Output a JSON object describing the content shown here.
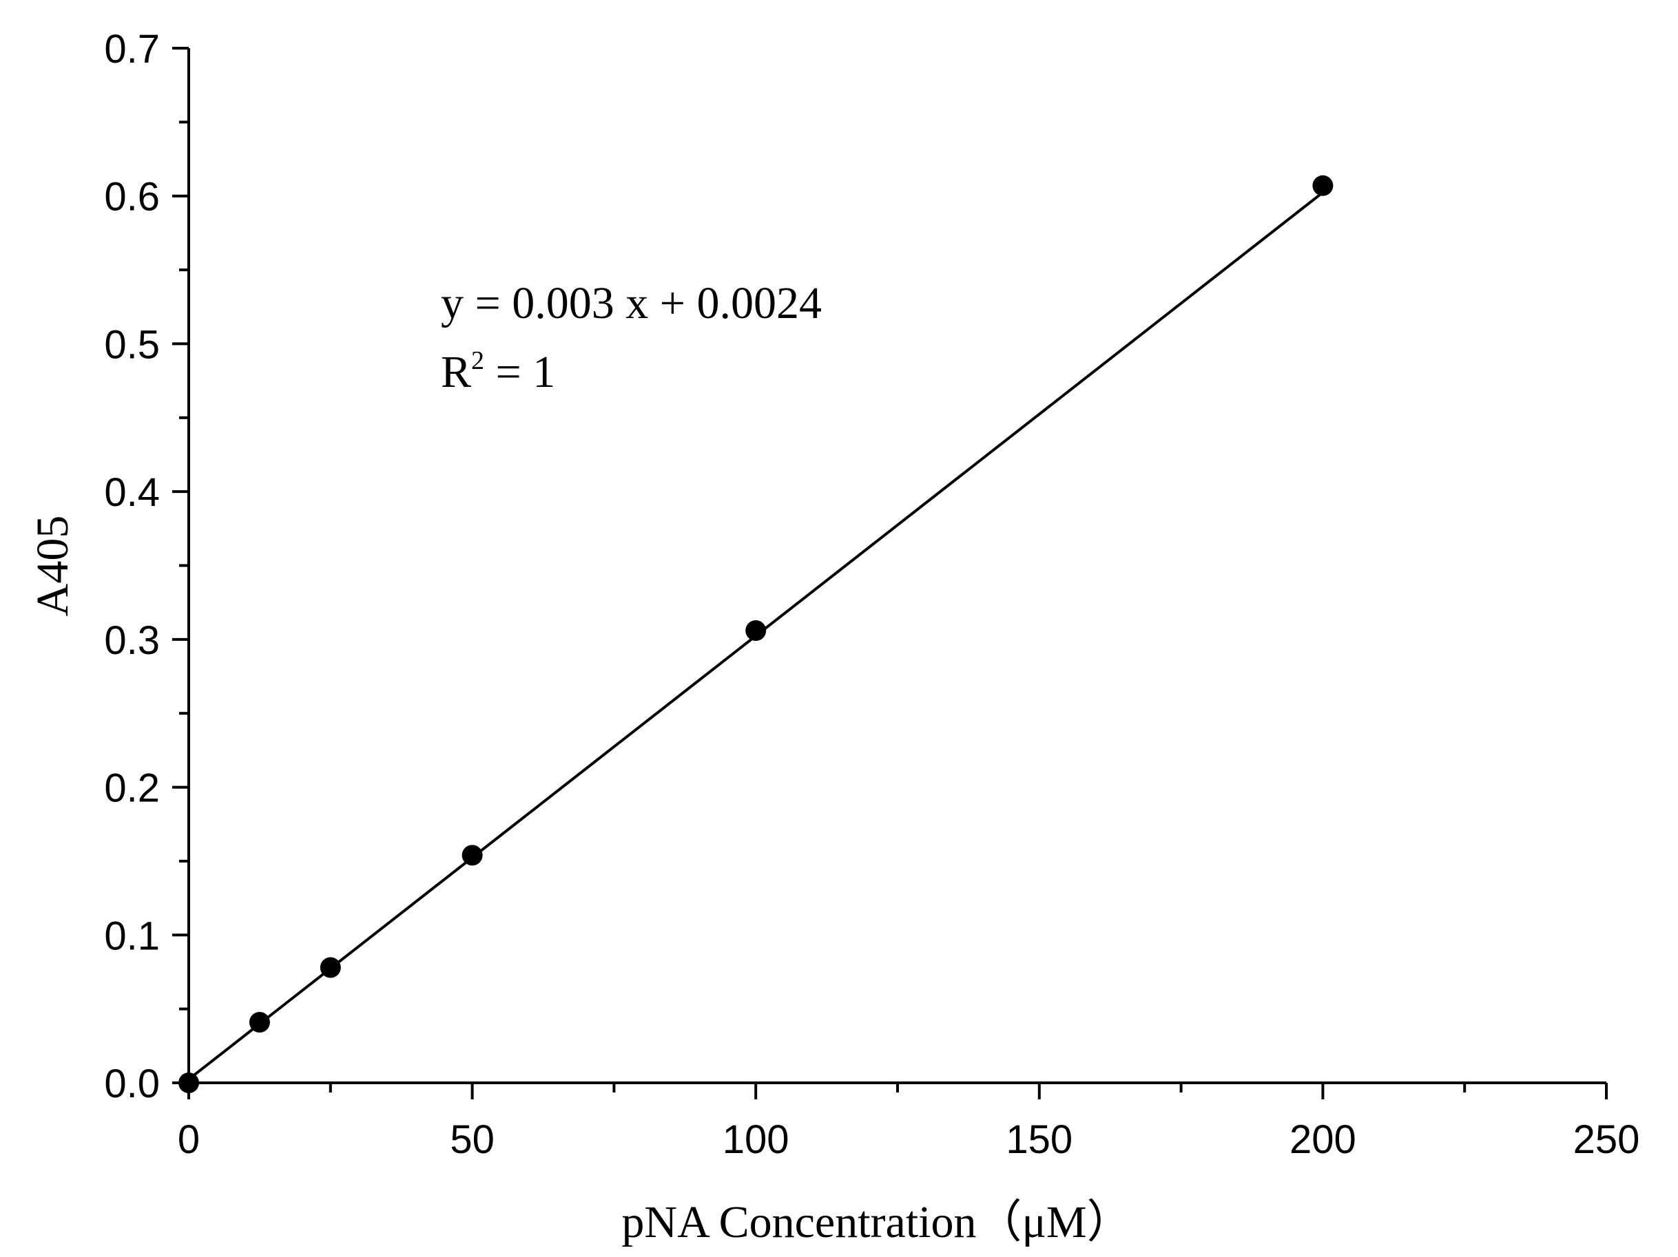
{
  "chart_data": {
    "type": "scatter",
    "xlabel": "pNA Concentration（μM）",
    "ylabel": "A405",
    "xlim": [
      0,
      250
    ],
    "ylim": [
      0,
      0.7
    ],
    "x_ticks": [
      0,
      50,
      100,
      150,
      200,
      250
    ],
    "y_ticks": [
      0.0,
      0.1,
      0.2,
      0.3,
      0.4,
      0.5,
      0.6,
      0.7
    ],
    "x_tick_labels": [
      "0",
      "50",
      "100",
      "150",
      "200",
      "250"
    ],
    "y_tick_labels": [
      "0.0",
      "0.1",
      "0.2",
      "0.3",
      "0.4",
      "0.5",
      "0.6",
      "0.7"
    ],
    "series": [
      {
        "x": [
          0,
          12.5,
          25,
          50,
          100,
          200
        ],
        "y": [
          0.0,
          0.041,
          0.078,
          0.154,
          0.306,
          0.607
        ]
      }
    ],
    "fit_line": {
      "slope": 0.003,
      "intercept": 0.0024,
      "x_range": [
        0,
        200
      ]
    },
    "annotation": {
      "equation": "y = 0.003 x + 0.0024",
      "r2_prefix": "R",
      "r2_exponent": "2",
      "r2_suffix": " = 1"
    },
    "grid": false,
    "legend": "none",
    "colors": {
      "axis": "#000000",
      "marker": "#000000",
      "line": "#000000"
    }
  }
}
